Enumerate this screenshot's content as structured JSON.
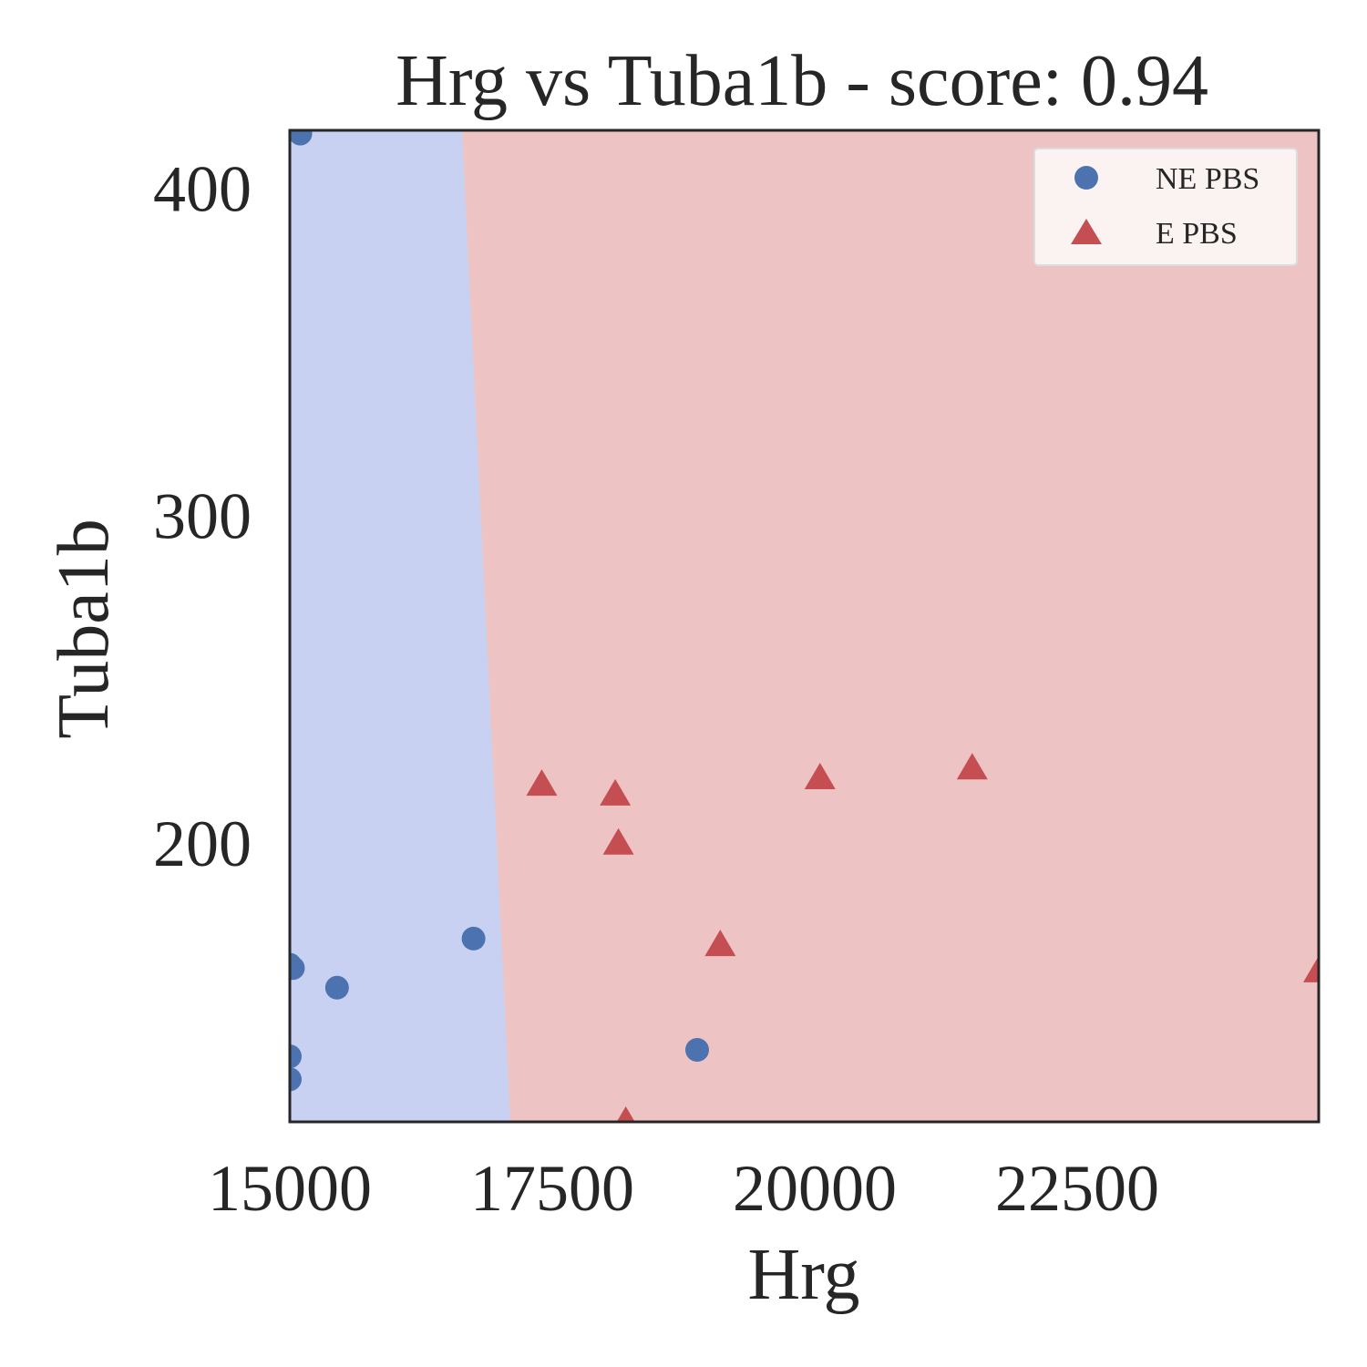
{
  "chart_data": {
    "type": "scatter",
    "title": "Hrg vs Tuba1b - score: 0.94",
    "xlabel": "Hrg",
    "ylabel": "Tuba1b",
    "xlim": [
      15000,
      24800
    ],
    "ylim": [
      115,
      418
    ],
    "xticks": [
      15000,
      17500,
      20000,
      22500
    ],
    "yticks": [
      200,
      300,
      400
    ],
    "xtick_labels": [
      "15000",
      "17500",
      "20000",
      "22500"
    ],
    "ytick_labels": [
      "200",
      "300",
      "400"
    ],
    "grid": false,
    "legend_position": "top-right",
    "decision_regions": {
      "boundary": [
        {
          "x": 16640,
          "y": 418
        },
        {
          "x": 17100,
          "y": 115
        }
      ],
      "left_region_class": "NE PBS",
      "right_region_class": "E PBS",
      "left_color": "#c8d1f1",
      "right_color": "#edc4c3"
    },
    "series": [
      {
        "name": "NE PBS",
        "marker": "circle",
        "color": "#4c72b0",
        "points": [
          {
            "x": 15000,
            "y": 163
          },
          {
            "x": 15100,
            "y": 417
          },
          {
            "x": 15030,
            "y": 162
          },
          {
            "x": 15450,
            "y": 156
          },
          {
            "x": 16750,
            "y": 171
          },
          {
            "x": 15000,
            "y": 135
          },
          {
            "x": 15000,
            "y": 128
          },
          {
            "x": 18880,
            "y": 137
          }
        ]
      },
      {
        "name": "E PBS",
        "marker": "triangle",
        "color": "#c44e52",
        "points": [
          {
            "x": 17400,
            "y": 218
          },
          {
            "x": 18100,
            "y": 215
          },
          {
            "x": 18130,
            "y": 200
          },
          {
            "x": 20050,
            "y": 220
          },
          {
            "x": 21500,
            "y": 223
          },
          {
            "x": 19100,
            "y": 169
          },
          {
            "x": 24800,
            "y": 161
          },
          {
            "x": 18200,
            "y": 115
          }
        ]
      }
    ]
  }
}
